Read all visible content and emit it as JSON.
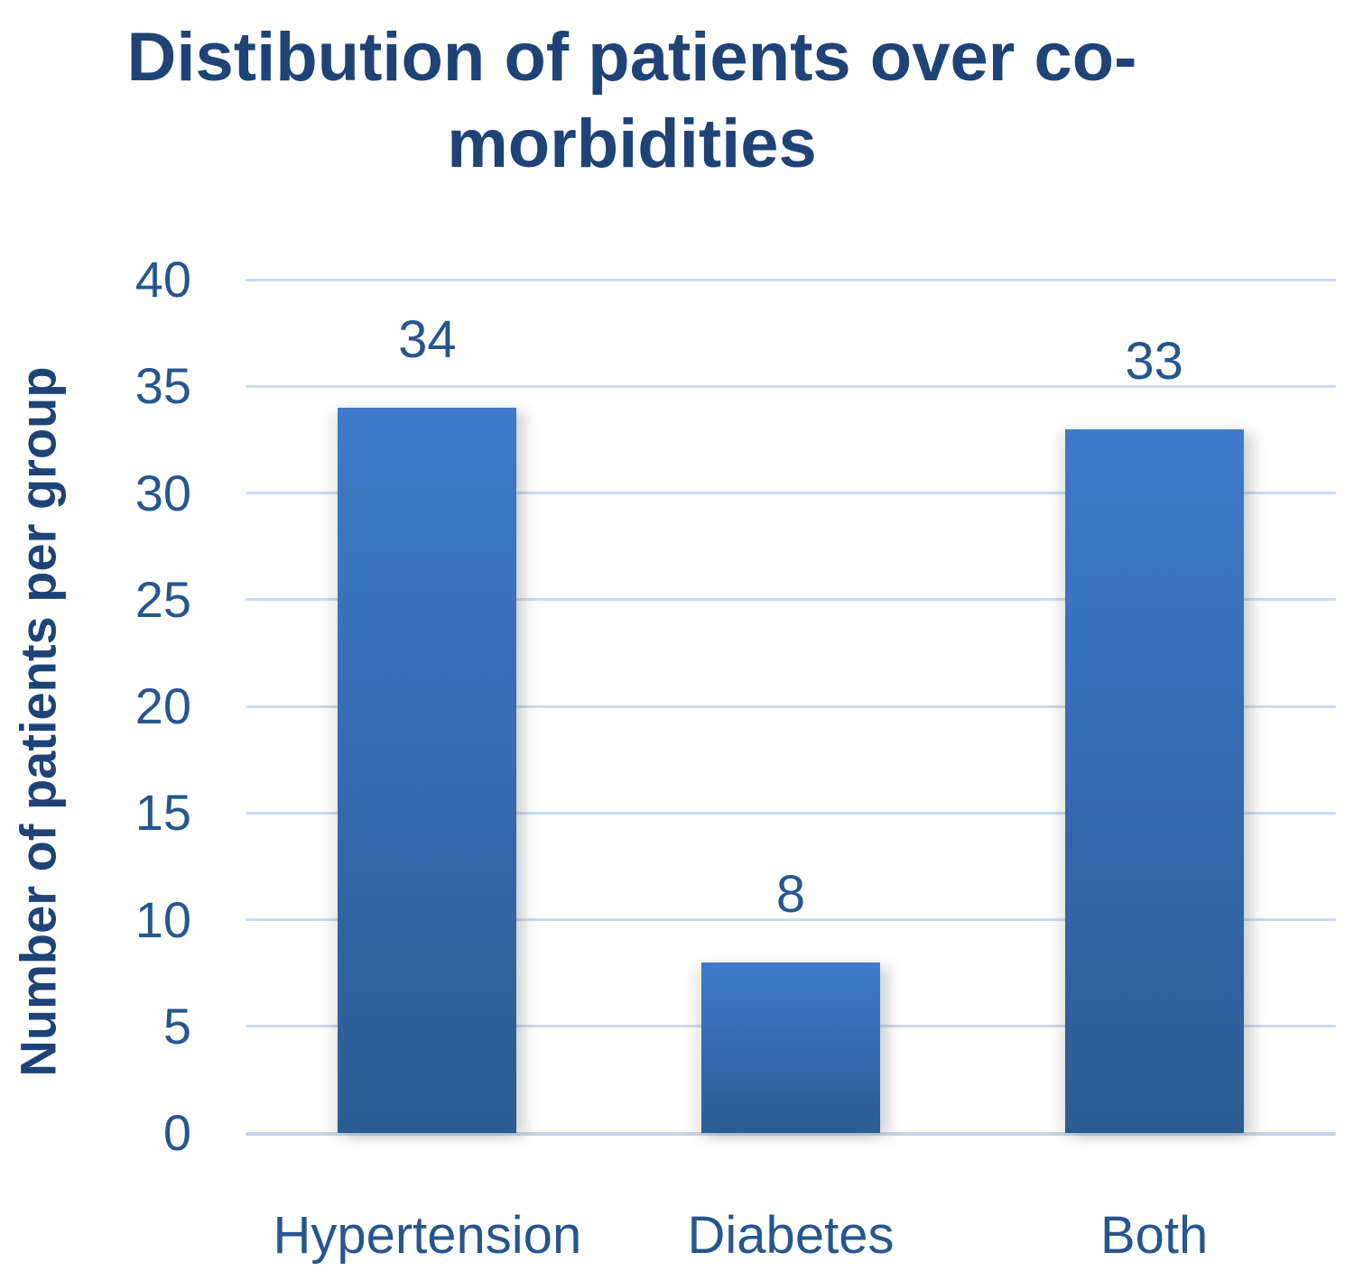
{
  "chart_data": {
    "type": "bar",
    "title": "Distibution of patients over co-morbidities",
    "title_lines": [
      "Distibution of patients over co-",
      "morbidities"
    ],
    "xlabel": "",
    "ylabel": "Number of patients per group",
    "categories": [
      "Hypertension",
      "Diabetes",
      "Both"
    ],
    "values": [
      34,
      8,
      33
    ],
    "data_labels": [
      "34",
      "8",
      "33"
    ],
    "ylim": [
      0,
      40
    ],
    "yticks": [
      0,
      5,
      10,
      15,
      20,
      25,
      30,
      35,
      40
    ],
    "grid": true,
    "legend": "none",
    "colors": {
      "bar_gradient_top": "#3e7bca",
      "bar_gradient_bottom": "#2b5c94",
      "gridline": "#ccdaec",
      "baseline": "#c6d5e8",
      "title_text": "#1f4377",
      "axis_text": "#27568f"
    }
  }
}
